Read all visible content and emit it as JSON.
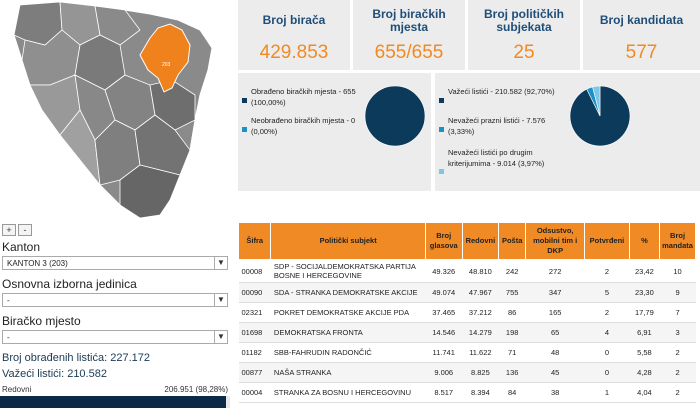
{
  "map": {
    "highlight_label": "203",
    "colors": {
      "highlight": "#f0821e",
      "region": "#8a8a8a",
      "region_dark": "#6e6e6e",
      "border": "#ffffff"
    }
  },
  "zoom": {
    "plus": "+",
    "minus": "-"
  },
  "filters": {
    "kanton_label": "Kanton",
    "kanton_value": "KANTON 3 (203)",
    "oij_label": "Osnovna izborna jedinica",
    "oij_value": "-",
    "bm_label": "Biračko mjesto",
    "bm_value": "-"
  },
  "summary": {
    "processed": "Broj obrađenih listića: 227.172",
    "valid": "Važeći listići: 210.582",
    "redovni_label": "Redovni",
    "redovni_value": "206.951 (98,28%)",
    "redovni_fraction": 0.9828
  },
  "stats": [
    {
      "title": "Broj birača",
      "value": "429.853"
    },
    {
      "title": "Broj biračkih mjesta",
      "value": "655/655"
    },
    {
      "title": "Broj političkih subjekata",
      "value": "25"
    },
    {
      "title": "Broj kandidata",
      "value": "577"
    }
  ],
  "panel1": {
    "items": [
      {
        "text": "Obrađeno biračkih mjesta - 655 (100,00%)",
        "color": "#0b3a5a"
      },
      {
        "text": "Neobrađeno biračkih mjesta - 0 (0,00%)",
        "color": "#1e90c8"
      }
    ],
    "pie": [
      100,
      0
    ]
  },
  "panel2": {
    "items": [
      {
        "text": "Važeći listići - 210.582 (92,70%)",
        "color": "#0b3a5a"
      },
      {
        "text": "Nevažeći prazni listići - 7.576 (3,33%)",
        "color": "#1e90c8"
      },
      {
        "text": "Nevažeći listići po drugim kriterijumima - 9.014 (3,97%)",
        "color": "#7cc7e8"
      }
    ],
    "pie": [
      92.7,
      3.33,
      3.97
    ]
  },
  "table": {
    "headers": [
      "Šifra",
      "Politički subjekt",
      "Broj glasova",
      "Redovni",
      "Pošta",
      "Odsustvo, mobilni tim i DKP",
      "Potvrđeni",
      "%",
      "Broj mandata"
    ],
    "rows": [
      [
        "00008",
        "SDP - SOCIJALDEMOKRATSKA PARTIJA BOSNE I HERCEGOVINE",
        "49.326",
        "48.810",
        "242",
        "272",
        "2",
        "23,42",
        "10"
      ],
      [
        "00090",
        "SDA - STRANKA DEMOKRATSKE AKCIJE",
        "49.074",
        "47.967",
        "755",
        "347",
        "5",
        "23,30",
        "9"
      ],
      [
        "02321",
        "POKRET DEMOKRATSKE AKCIJE PDA",
        "37.465",
        "37.212",
        "86",
        "165",
        "2",
        "17,79",
        "7"
      ],
      [
        "01698",
        "DEMOKRATSKA FRONTA",
        "14.546",
        "14.279",
        "198",
        "65",
        "4",
        "6,91",
        "3"
      ],
      [
        "01182",
        "SBB-FAHRUDIN RADONČIĆ",
        "11.741",
        "11.622",
        "71",
        "48",
        "0",
        "5,58",
        "2"
      ],
      [
        "00877",
        "NAŠA STRANKA",
        "9.006",
        "8.825",
        "136",
        "45",
        "0",
        "4,28",
        "2"
      ],
      [
        "00004",
        "STRANKA ZA BOSNU I HERCEGOVINU",
        "8.517",
        "8.394",
        "84",
        "38",
        "1",
        "4,04",
        "2"
      ]
    ]
  }
}
